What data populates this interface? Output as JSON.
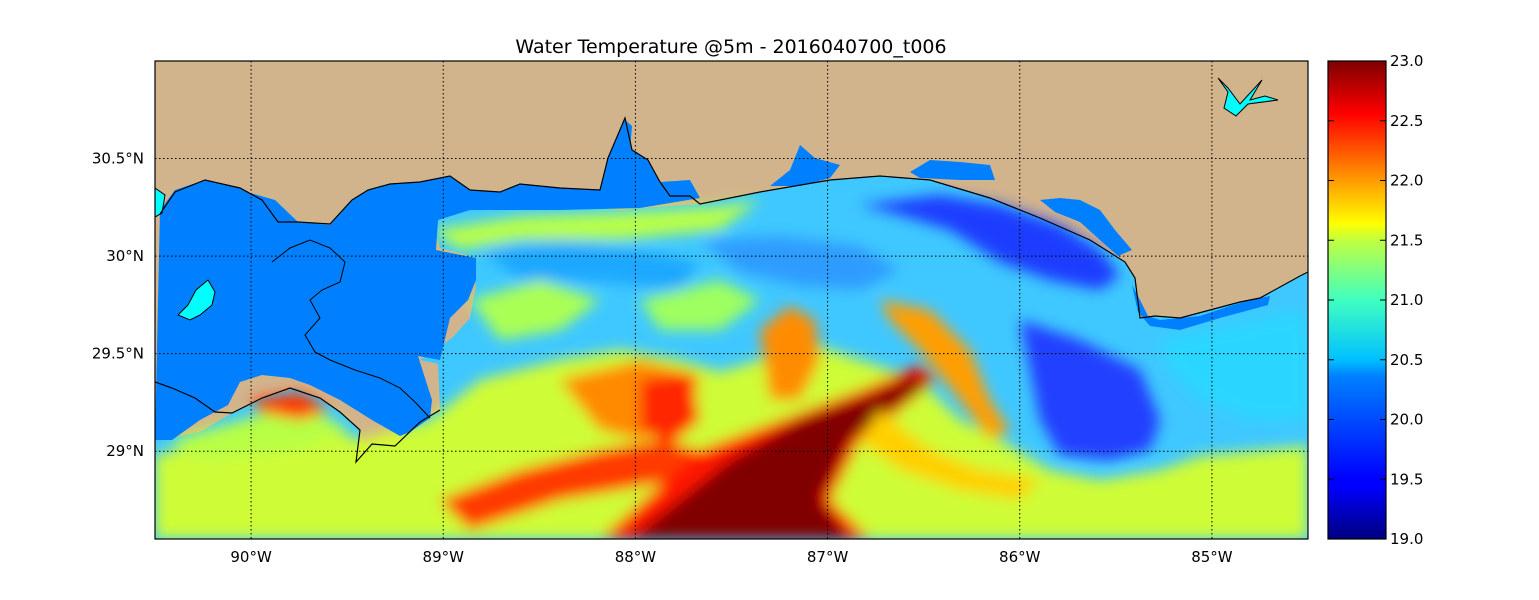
{
  "map": {
    "title": "Water Temperature @5m - 2016040700_t006",
    "lon_range": [
      -90.5,
      -84.5
    ],
    "lat_range": [
      28.55,
      31.0
    ],
    "lon_ticks": [
      {
        "value": -90,
        "label": "90°W"
      },
      {
        "value": -89,
        "label": "89°W"
      },
      {
        "value": -88,
        "label": "88°W"
      },
      {
        "value": -87,
        "label": "87°W"
      },
      {
        "value": -86,
        "label": "86°W"
      },
      {
        "value": -85,
        "label": "85°W"
      }
    ],
    "lat_ticks": [
      {
        "value": 30.5,
        "label": "30.5°N"
      },
      {
        "value": 30.0,
        "label": "30°N"
      },
      {
        "value": 29.5,
        "label": "29.5°N"
      },
      {
        "value": 29.0,
        "label": "29°N"
      }
    ],
    "grid": true,
    "colors": {
      "land": "#d2b48c",
      "masked_water": "#0080ff",
      "lake": "#00ffff",
      "coastline": "#000000"
    }
  },
  "colorbar": {
    "range": [
      19.0,
      23.0
    ],
    "colormap": "jet",
    "ticks": [
      {
        "value": 23.0,
        "label": "23.0"
      },
      {
        "value": 22.5,
        "label": "22.5"
      },
      {
        "value": 22.0,
        "label": "22.0"
      },
      {
        "value": 21.5,
        "label": "21.5"
      },
      {
        "value": 21.0,
        "label": "21.0"
      },
      {
        "value": 20.5,
        "label": "20.5"
      },
      {
        "value": 20.0,
        "label": "20.0"
      },
      {
        "value": 19.5,
        "label": "19.5"
      },
      {
        "value": 19.0,
        "label": "19.0"
      }
    ]
  }
}
